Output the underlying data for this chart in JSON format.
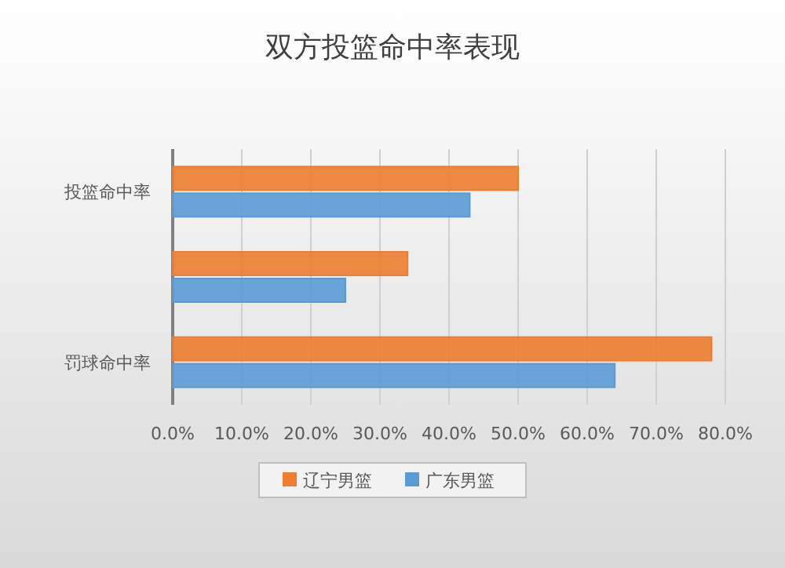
{
  "chart_data": {
    "type": "bar",
    "orientation": "horizontal",
    "title": "双方投篮命中率表现",
    "categories": [
      "投篮命中率",
      null,
      "罚球命中率"
    ],
    "series": [
      {
        "name": "辽宁男篮",
        "color": "#ed7d31",
        "values": [
          50,
          34,
          78
        ]
      },
      {
        "name": "广东男篮",
        "color": "#5b9bd5",
        "values": [
          43,
          25,
          64
        ]
      }
    ],
    "xlim": [
      0,
      80
    ],
    "xticks": [
      {
        "value": 0,
        "label": "0.0%"
      },
      {
        "value": 10,
        "label": "10.0%"
      },
      {
        "value": 20,
        "label": "20.0%"
      },
      {
        "value": 30,
        "label": "30.0%"
      },
      {
        "value": 40,
        "label": "40.0%"
      },
      {
        "value": 50,
        "label": "50.0%"
      },
      {
        "value": 60,
        "label": "60.0%"
      },
      {
        "value": 70,
        "label": "70.0%"
      },
      {
        "value": 80,
        "label": "80.0%"
      }
    ],
    "grid": "x",
    "legend": "bottom"
  }
}
